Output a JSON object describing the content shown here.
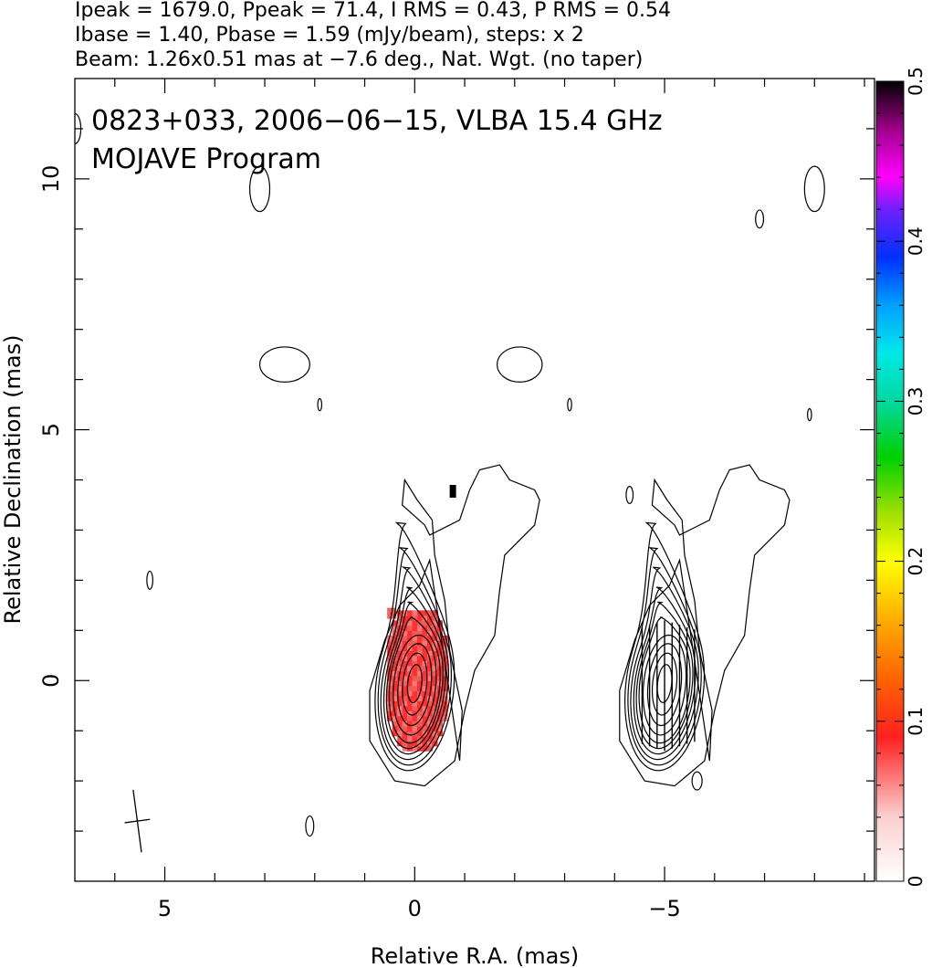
{
  "header": {
    "line1": "Ipeak = 1679.0, Ppeak = 71.4, I RMS = 0.43, P RMS = 0.54",
    "line2": "Ibase = 1.40, Pbase = 1.59 (mJy/beam), steps: x 2",
    "line3": "Beam: 1.26x0.51 mas at −7.6 deg., Nat. Wgt. (no taper)"
  },
  "chart_data": {
    "type": "contour",
    "title": "0823+033, 2006−06−15, VLBA 15.4 GHz",
    "subtitle": "MOJAVE Program",
    "xlabel": "Relative R.A. (mas)",
    "ylabel": "Relative Declination (mas)",
    "xlim": [
      6.8,
      -9.2
    ],
    "ylim": [
      -4.0,
      12.0
    ],
    "x_ticks": [
      5,
      0,
      -5
    ],
    "x_tick_labels": [
      "5",
      "0",
      "−5"
    ],
    "y_ticks": [
      0,
      5,
      10
    ],
    "y_tick_labels": [
      "0",
      "5",
      "10"
    ],
    "colorbar": {
      "range": [
        0,
        0.5
      ],
      "ticks": [
        0,
        0.1,
        0.2,
        0.3,
        0.4,
        0.5
      ],
      "tick_labels": [
        "0",
        "0.1",
        "0.2",
        "0.3",
        "0.4",
        "0.5"
      ]
    },
    "left_map": {
      "core_center": [
        0.0,
        0.0
      ],
      "contour_levels_mjy": [
        1.4,
        2.8,
        5.6,
        11.2,
        22.4,
        44.8,
        89.6,
        179.2,
        358.4,
        716.8
      ],
      "polarization_fraction_color": "#f06060",
      "polarization_pixel_extent": {
        "ra": [
          0.55,
          -0.6
        ],
        "dec": [
          -1.4,
          1.4
        ]
      }
    },
    "right_map": {
      "core_center": [
        -5.0,
        0.0
      ],
      "description_panel": "EVPA ticks with total intensity contours"
    },
    "beam": {
      "major_mas": 1.26,
      "minor_mas": 0.51,
      "pa_deg": -7.6,
      "center": [
        5.55,
        -2.8
      ]
    },
    "grid": false
  }
}
